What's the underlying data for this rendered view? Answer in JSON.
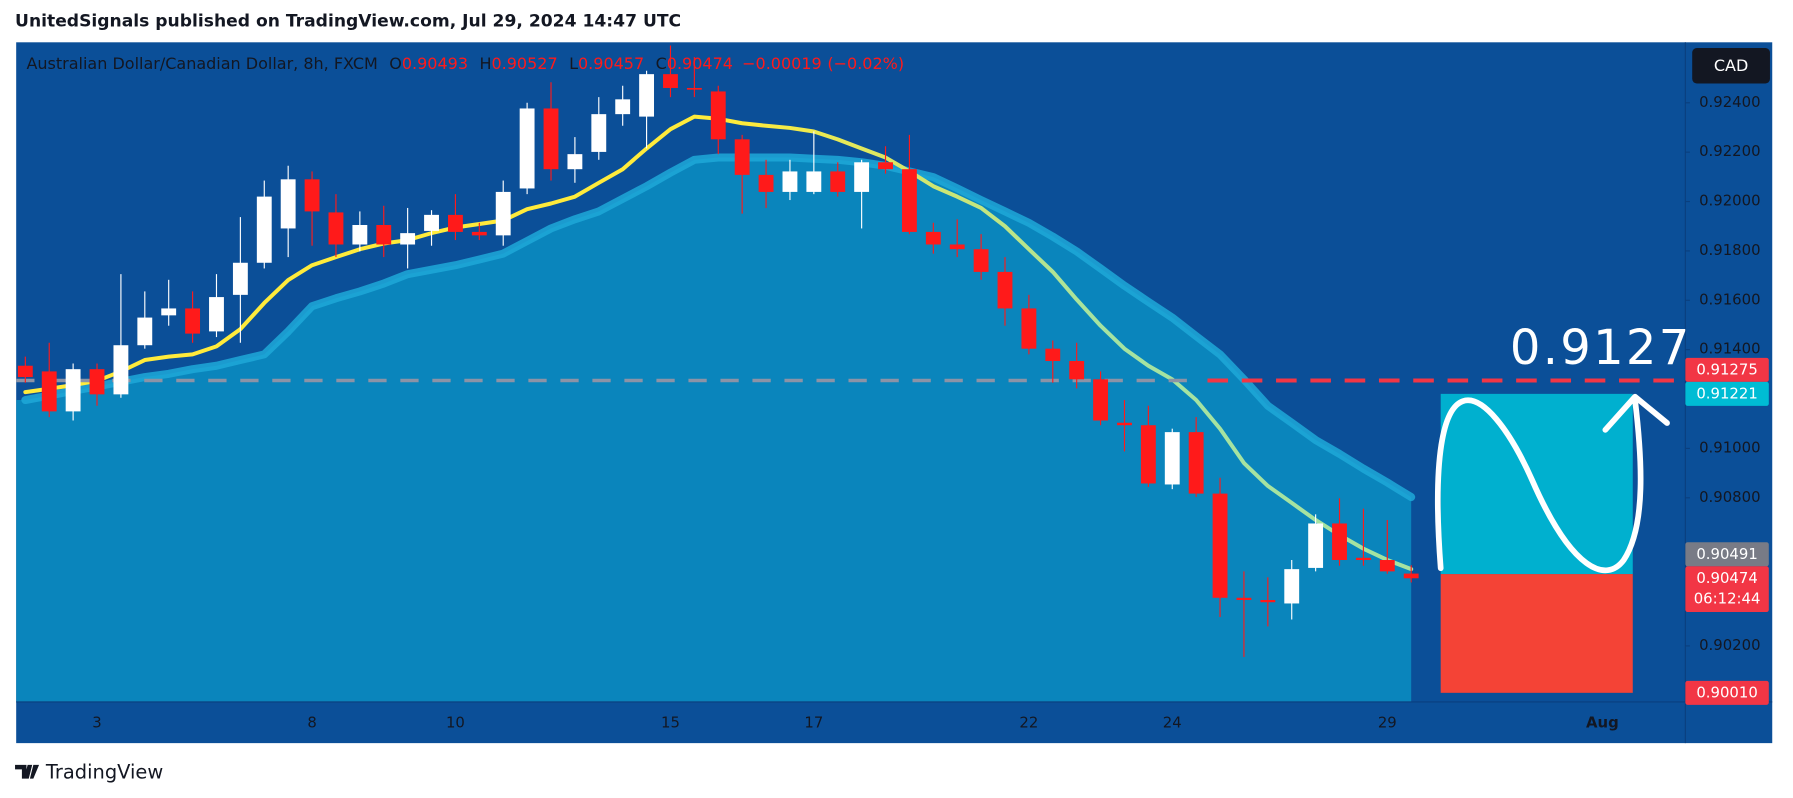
{
  "chart_data": {
    "type": "candlestick",
    "publisher": "UnitedSignals published on TradingView.com, Jul 29, 2024 14:47 UTC",
    "brand": "TradingView",
    "title": "Australian Dollar/Canadian Dollar, 8h, FXCM",
    "currency": "CAD",
    "legend": [
      {
        "key": "O",
        "value": 0.90493
      },
      {
        "key": "H",
        "value": 0.90527
      },
      {
        "key": "L",
        "value": 0.90457
      },
      {
        "key": "C",
        "value": 0.90474
      }
    ],
    "change": {
      "value": -0.00019,
      "label": "−0.00019"
    },
    "change_pct": {
      "value": -0.02,
      "label": "(−0.02%)"
    },
    "annotation": 0.9127,
    "categories": [
      null,
      null,
      null,
      "3",
      null,
      null,
      null,
      null,
      null,
      null,
      null,
      null,
      "8",
      null,
      null,
      null,
      null,
      null,
      "10",
      null,
      null,
      null,
      null,
      null,
      null,
      null,
      null,
      "15",
      null,
      null,
      null,
      null,
      null,
      "17",
      null,
      null,
      null,
      null,
      null,
      null,
      null,
      null,
      "22",
      null,
      null,
      null,
      null,
      null,
      "24",
      null,
      null,
      null,
      null,
      null,
      null,
      null,
      null,
      "29",
      null,
      null,
      null,
      null,
      null,
      null,
      null,
      null,
      "Aug",
      null,
      null,
      null
    ],
    "open": [
      0.91335,
      0.91312,
      0.9115,
      0.91321,
      0.91219,
      0.91418,
      0.91539,
      0.91567,
      0.91474,
      0.91622,
      0.91752,
      0.91891,
      0.9209,
      0.91956,
      0.91826,
      0.91905,
      0.91826,
      0.91881,
      0.91946,
      0.91877,
      0.91863,
      0.92053,
      0.92377,
      0.92131,
      0.92201,
      0.92354,
      0.92344,
      0.92516,
      0.9246,
      0.92446,
      0.92252,
      0.92108,
      0.92039,
      0.92039,
      0.92122,
      0.92039,
      0.92159,
      0.92131,
      0.91877,
      0.91826,
      0.91807,
      0.91715,
      0.91567,
      0.91404,
      0.91354,
      0.9128,
      0.91104,
      0.91094,
      0.90854,
      0.91066,
      0.90817,
      0.90395,
      0.90386,
      0.90372,
      0.90516,
      0.90696,
      0.90557,
      0.90548,
      0.90493,
      null,
      null,
      null,
      null,
      null,
      null,
      null,
      null,
      null,
      null,
      null
    ],
    "high": [
      0.91372,
      0.91428,
      0.91344,
      0.91344,
      0.91706,
      0.91636,
      0.91683,
      0.91636,
      0.91706,
      0.91937,
      0.92085,
      0.92145,
      0.92122,
      0.9203,
      0.9196,
      0.91983,
      0.91974,
      0.91965,
      0.9203,
      0.91914,
      0.92085,
      0.924,
      0.92483,
      0.92261,
      0.92423,
      0.92469,
      0.9253,
      0.92632,
      0.92585,
      0.92469,
      0.9227,
      0.92169,
      0.92169,
      0.92284,
      0.92159,
      0.92169,
      0.92224,
      0.9227,
      0.91914,
      0.91928,
      0.91868,
      0.91775,
      0.91622,
      0.91437,
      0.91428,
      0.91312,
      0.91196,
      0.91173,
      0.9108,
      0.91127,
      0.90881,
      0.90502,
      0.90478,
      0.90548,
      0.90733,
      0.90798,
      0.90756,
      0.9071,
      0.90527,
      null,
      null,
      null,
      null,
      null,
      null,
      null,
      null,
      null,
      null,
      null
    ],
    "low": [
      0.91266,
      0.91127,
      0.91113,
      0.91173,
      0.91205,
      0.91404,
      0.91497,
      0.91428,
      0.91451,
      0.91428,
      0.91729,
      0.91775,
      0.91821,
      0.91775,
      0.91798,
      0.91775,
      0.91729,
      0.91821,
      0.91844,
      0.91844,
      0.91821,
      0.9203,
      0.92085,
      0.92076,
      0.92169,
      0.92307,
      0.92215,
      0.92423,
      0.92423,
      0.92192,
      0.91951,
      0.91974,
      0.92006,
      0.9203,
      0.9202,
      0.91891,
      0.92113,
      0.91868,
      0.91789,
      0.91775,
      0.91683,
      0.91497,
      0.91381,
      0.91266,
      0.91243,
      0.91094,
      0.90988,
      0.90844,
      0.90835,
      0.90803,
      0.90317,
      0.90155,
      0.90279,
      0.90307,
      0.90502,
      0.90525,
      0.90525,
      0.90492,
      0.90457,
      null,
      null,
      null,
      null,
      null,
      null,
      null,
      null,
      null,
      null,
      null
    ],
    "close": [
      0.91289,
      0.9115,
      0.91321,
      0.91219,
      0.91418,
      0.9153,
      0.91567,
      0.91465,
      0.91613,
      0.91752,
      0.9202,
      0.9209,
      0.9196,
      0.91826,
      0.91905,
      0.91826,
      0.91872,
      0.91946,
      0.91877,
      0.91863,
      0.92039,
      0.92377,
      0.92131,
      0.92192,
      0.92354,
      0.92414,
      0.92516,
      0.9246,
      0.92456,
      0.92252,
      0.92108,
      0.92039,
      0.92122,
      0.92122,
      0.92039,
      0.92159,
      0.92131,
      0.91877,
      0.91826,
      0.91807,
      0.91715,
      0.91567,
      0.91404,
      0.91354,
      0.9128,
      0.91113,
      0.91094,
      0.90858,
      0.91066,
      0.90817,
      0.90395,
      0.90386,
      0.90377,
      0.90511,
      0.90696,
      0.90548,
      0.90548,
      0.90502,
      0.90474,
      null,
      null,
      null,
      null,
      null,
      null,
      null,
      null,
      null,
      null,
      null
    ],
    "colors": {
      "up": "#ffffff",
      "down": "#ff1a1a"
    },
    "series": [
      {
        "color": "#1ea8d8",
        "fill": "#0a85bc",
        "values": [
          0.91196,
          0.91214,
          0.91233,
          0.91251,
          0.9127,
          0.91289,
          0.91302,
          0.91321,
          0.91335,
          0.91358,
          0.91381,
          0.91474,
          0.91576,
          0.91608,
          0.91636,
          0.91668,
          0.91706,
          0.91724,
          0.91742,
          0.91765,
          0.91789,
          0.9184,
          0.91891,
          0.91928,
          0.9196,
          0.92011,
          0.92062,
          0.92117,
          0.92169,
          0.92178,
          0.92178,
          0.92178,
          0.92178,
          0.92173,
          0.92169,
          0.92159,
          0.92145,
          0.92122,
          0.92099,
          0.92053,
          0.92006,
          0.9196,
          0.91914,
          0.91858,
          0.91798,
          0.91729,
          0.91659,
          0.91594,
          0.9153,
          0.91455,
          0.91381,
          0.9128,
          0.91173,
          0.91104,
          0.91034,
          0.90978,
          0.90918,
          0.90862,
          0.90803,
          null,
          null,
          null,
          null,
          null,
          null,
          null,
          null,
          null,
          null,
          null
        ]
      },
      {
        "color": "#ffeb3b",
        "color_end": "#a5e3a1",
        "values": [
          0.91228,
          0.91242,
          0.91256,
          0.91274,
          0.91312,
          0.91358,
          0.91372,
          0.91381,
          0.91413,
          0.91483,
          0.91589,
          0.91682,
          0.91742,
          0.91775,
          0.91807,
          0.9183,
          0.91844,
          0.91872,
          0.91895,
          0.91909,
          0.91923,
          0.91969,
          0.91992,
          0.9202,
          0.92076,
          0.92131,
          0.92215,
          0.92293,
          0.92344,
          0.92335,
          0.92317,
          0.92307,
          0.92298,
          0.92284,
          0.92252,
          0.92215,
          0.92178,
          0.92122,
          0.92062,
          0.9202,
          0.91974,
          0.919,
          0.91807,
          0.91715,
          0.91603,
          0.91497,
          0.91404,
          0.91335,
          0.9128,
          0.91196,
          0.9108,
          0.90941,
          0.90848,
          0.90779,
          0.9071,
          0.90649,
          0.90594,
          0.90548,
          0.90511,
          null,
          null,
          null,
          null,
          null,
          null,
          null,
          null,
          null,
          null,
          null
        ]
      }
    ],
    "price_badges": [
      {
        "price": 0.91275,
        "color": "#f23645"
      },
      {
        "price": 0.91221,
        "color": "#00bcd4"
      },
      {
        "price": 0.90491,
        "color": "#787b86"
      },
      {
        "price": 0.90474,
        "color": "#f23645",
        "countdown": "06:12:44"
      },
      {
        "price": {
          "value": 0.9001,
          "label": "0.90010"
        },
        "color": "#f23645"
      }
    ],
    "forecast_colors": {
      "up": "#00b0cf",
      "down": "#f44336"
    },
    "level_colors": {
      "past": "#8c93a6",
      "future": "#f23645"
    },
    "ylim": [
      0.89973,
      0.92645
    ],
    "yticks": [
      {
        "value": 0.924,
        "label": "0.92400"
      },
      {
        "value": 0.922,
        "label": "0.92200"
      },
      {
        "value": 0.92,
        "label": "0.92000"
      },
      {
        "value": 0.918,
        "label": "0.91800"
      },
      {
        "value": 0.916,
        "label": "0.91600"
      },
      {
        "value": 0.914,
        "label": "0.91400"
      },
      {
        "value": 0.91,
        "label": "0.91000"
      },
      {
        "value": 0.908,
        "label": "0.90800"
      },
      {
        "value": 0.902,
        "label": "0.90200"
      }
    ],
    "grid": false
  }
}
